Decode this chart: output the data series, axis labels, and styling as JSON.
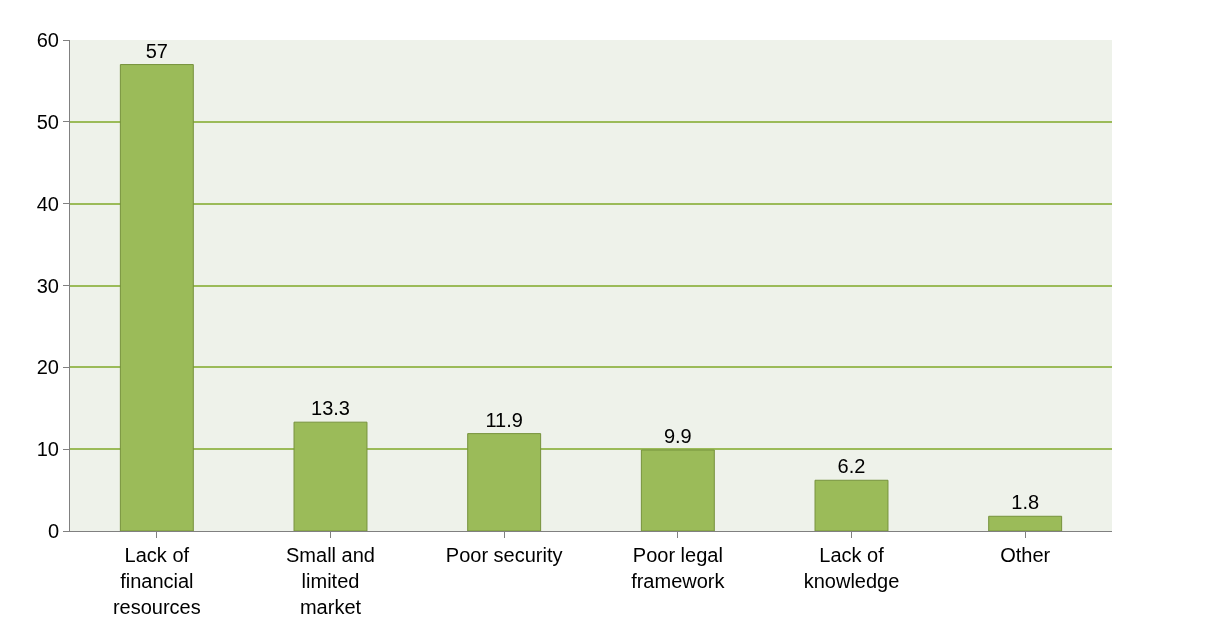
{
  "chart_data": {
    "type": "bar",
    "categories": [
      "Lack of financial resources",
      "Small and limited market",
      "Poor security",
      "Poor legal framework",
      "Lack of knowledge",
      "Other"
    ],
    "values": [
      57,
      13.3,
      11.9,
      9.9,
      6.2,
      1.8
    ],
    "color": "#9bbb59",
    "ylim": [
      0,
      60
    ],
    "yticks": [
      0,
      10,
      20,
      30,
      40,
      50,
      60
    ],
    "grid": "y",
    "data_labels": true
  }
}
